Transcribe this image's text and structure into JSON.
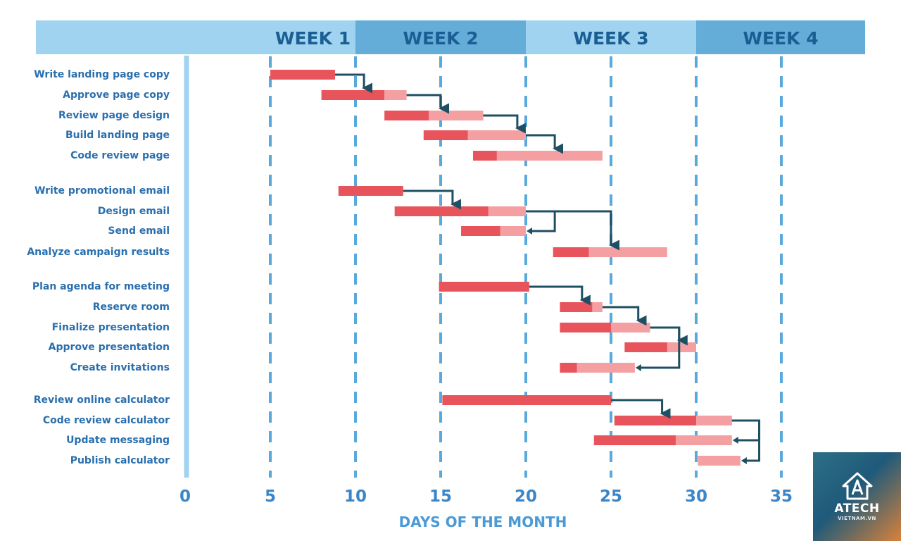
{
  "colors": {
    "header_light": "#9fd3ef",
    "header_dark": "#63add8",
    "header_text": "#1b5e93",
    "gridline": "#5aa9dc",
    "axis_line": "#9fd3ef",
    "bar_dark": "#e8545b",
    "bar_light": "#f4a0a3",
    "arrow": "#1e4f63",
    "label_text": "#2a6fae",
    "tick_text": "#3a86c8",
    "axis_title_text": "#4b9ad6"
  },
  "chart_data": {
    "type": "gantt",
    "title": "",
    "xlabel": "DAYS OF THE MONTH",
    "xlim": [
      0,
      35
    ],
    "x_ticks": [
      0,
      5,
      10,
      15,
      20,
      25,
      30,
      35
    ],
    "grid": true,
    "weeks": [
      {
        "label": "WEEK 1",
        "start": 5,
        "end": 10
      },
      {
        "label": "WEEK 2",
        "start": 10,
        "end": 20
      },
      {
        "label": "WEEK 3",
        "start": 20,
        "end": 30
      },
      {
        "label": "WEEK 4",
        "start": 30,
        "end": 40
      }
    ],
    "tasks": [
      {
        "name": "Write landing page copy",
        "start": 5,
        "mid": 8.8,
        "end": 8.8
      },
      {
        "name": "Approve page copy",
        "start": 8.0,
        "mid": 11.7,
        "end": 13.0
      },
      {
        "name": "Review page design",
        "start": 11.7,
        "mid": 14.3,
        "end": 17.5
      },
      {
        "name": "Build landing page",
        "start": 14.0,
        "mid": 16.6,
        "end": 20.0
      },
      {
        "name": "Code review page",
        "start": 16.9,
        "mid": 18.3,
        "end": 24.5
      },
      {
        "name": "Write promotional email",
        "start": 9.0,
        "mid": 12.8,
        "end": 12.8
      },
      {
        "name": "Design email",
        "start": 12.3,
        "mid": 17.8,
        "end": 20.0
      },
      {
        "name": "Send email",
        "start": 16.2,
        "mid": 18.5,
        "end": 20.0
      },
      {
        "name": "Analyze campaign results",
        "start": 21.6,
        "mid": 23.7,
        "end": 28.3
      },
      {
        "name": "Plan agenda for meeting",
        "start": 14.9,
        "mid": 20.2,
        "end": 20.2
      },
      {
        "name": "Reserve room",
        "start": 22.0,
        "mid": 23.9,
        "end": 24.5
      },
      {
        "name": "Finalize presentation",
        "start": 22.0,
        "mid": 25.0,
        "end": 27.3
      },
      {
        "name": "Approve presentation",
        "start": 25.8,
        "mid": 28.3,
        "end": 30.0
      },
      {
        "name": "Create invitations",
        "start": 22.0,
        "mid": 23.0,
        "end": 26.4
      },
      {
        "name": "Review online calculator",
        "start": 15.1,
        "mid": 25.0,
        "end": 25.0
      },
      {
        "name": "Code review calculator",
        "start": 25.2,
        "mid": 30.0,
        "end": 32.1
      },
      {
        "name": "Update messaging",
        "start": 24.0,
        "mid": 28.8,
        "end": 32.1
      },
      {
        "name": "Publish calculator",
        "start": 30.1,
        "mid": 30.1,
        "end": 32.6
      }
    ],
    "dependencies": [
      {
        "from": 0,
        "to": 1,
        "at": 10.5
      },
      {
        "from": 1,
        "to": 2,
        "at": 15.0
      },
      {
        "from": 2,
        "to": 3,
        "at": 19.5
      },
      {
        "from": 3,
        "to": 4,
        "at": 21.7
      },
      {
        "from": 5,
        "to": 6,
        "at": 15.7
      },
      {
        "from": 6,
        "to": 8,
        "at": 25.0
      },
      {
        "from": 6,
        "to": 7,
        "at": 21.7
      },
      {
        "from": 9,
        "to": 10,
        "at": 23.3
      },
      {
        "from": 10,
        "to": 11,
        "at": 26.6
      },
      {
        "from": 11,
        "to": 12,
        "at": 29.0
      },
      {
        "from": 11,
        "to": 13,
        "at": 29.0
      },
      {
        "from": 14,
        "to": 15,
        "at": 28.0
      },
      {
        "from": 15,
        "to": 16,
        "at": 33.7
      },
      {
        "from": 15,
        "to": 17,
        "at": 33.7
      }
    ]
  },
  "logo": {
    "name": "ATECH",
    "sub": "VIETNAM.VN"
  }
}
